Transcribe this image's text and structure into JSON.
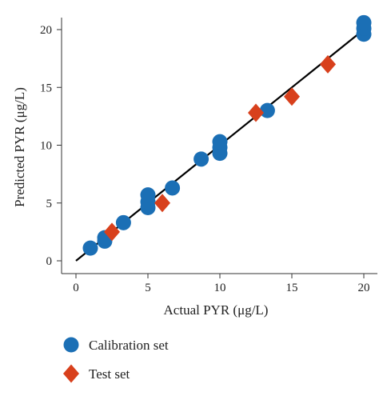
{
  "chart_data": {
    "type": "scatter",
    "xlabel": "Actual PYR (μg/L)",
    "ylabel": "Predicted PYR (μg/L)",
    "xlim": [
      -1,
      21
    ],
    "ylim": [
      -1,
      21
    ],
    "x_ticks": [
      "0",
      "5",
      "10",
      "15",
      "20"
    ],
    "y_ticks": [
      "0",
      "5",
      "10",
      "15",
      "20"
    ],
    "grid": false,
    "legend_position": "bottom-left",
    "series": [
      {
        "name": "Calibration set",
        "marker": "circle",
        "color": "#1b6fb5",
        "points": [
          {
            "x": 1.0,
            "y": 1.1
          },
          {
            "x": 2.0,
            "y": 1.7
          },
          {
            "x": 2.0,
            "y": 2.0
          },
          {
            "x": 3.3,
            "y": 3.3
          },
          {
            "x": 5.0,
            "y": 4.6
          },
          {
            "x": 5.0,
            "y": 5.1
          },
          {
            "x": 5.0,
            "y": 5.7
          },
          {
            "x": 6.7,
            "y": 6.3
          },
          {
            "x": 8.7,
            "y": 8.8
          },
          {
            "x": 10.0,
            "y": 9.3
          },
          {
            "x": 10.0,
            "y": 9.8
          },
          {
            "x": 10.0,
            "y": 10.3
          },
          {
            "x": 13.3,
            "y": 13.0
          },
          {
            "x": 20.0,
            "y": 19.6
          },
          {
            "x": 20.0,
            "y": 20.1
          },
          {
            "x": 20.0,
            "y": 20.6
          }
        ]
      },
      {
        "name": "Test set",
        "marker": "diamond",
        "color": "#d8401c",
        "points": [
          {
            "x": 2.5,
            "y": 2.5
          },
          {
            "x": 6.0,
            "y": 5.0
          },
          {
            "x": 12.5,
            "y": 12.8
          },
          {
            "x": 15.0,
            "y": 14.2
          },
          {
            "x": 17.5,
            "y": 17.0
          }
        ]
      }
    ],
    "reference_line": {
      "from": [
        0,
        0
      ],
      "to": [
        20,
        20
      ],
      "color": "#000000"
    }
  }
}
